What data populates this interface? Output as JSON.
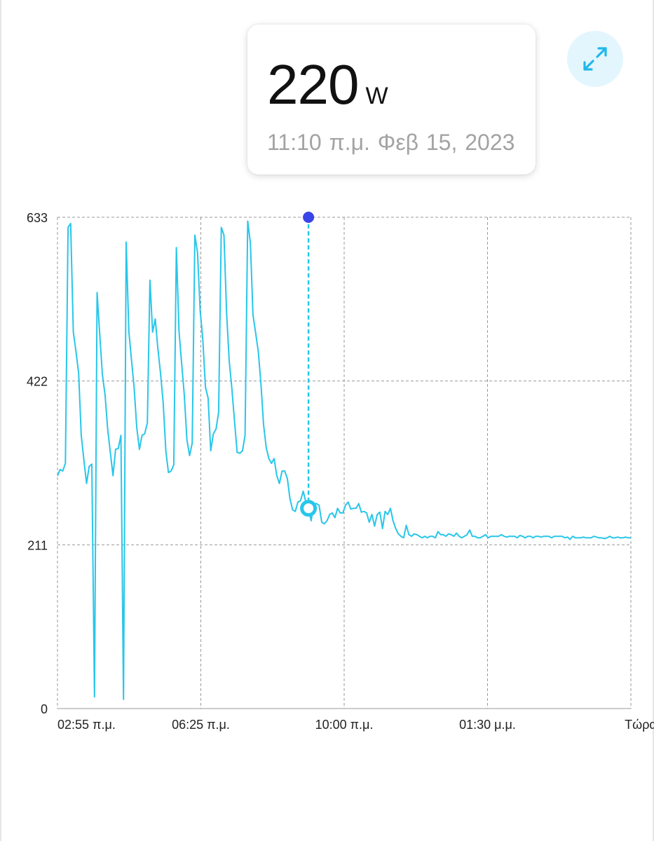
{
  "reading": {
    "value": "220",
    "unit": "W",
    "time": "11:10 π.μ.",
    "date": "Φεβ 15, 2023"
  },
  "expand_button": {
    "icon": "expand-icon"
  },
  "colors": {
    "line": "#28c6ea",
    "marker_top": "#3a44e8",
    "grid": "#9a9a9a"
  },
  "chart_data": {
    "type": "line",
    "title": "",
    "xlabel": "",
    "ylabel": "",
    "y_ticks": [
      "633",
      "422",
      "211",
      "0"
    ],
    "y_tick_values": [
      633,
      422,
      211,
      0
    ],
    "x_ticks": [
      "02:55 π.μ.",
      "06:25 π.μ.",
      "10:00 π.μ.",
      "01:30 μ.μ.",
      "Τώρα"
    ],
    "ylim": [
      0,
      633
    ],
    "grid": true,
    "selected_index": 95,
    "series": [
      {
        "values": [
          300,
          308,
          306,
          316,
          620,
          625,
          485,
          460,
          432,
          352,
          320,
          290,
          312,
          315,
          15,
          536,
          482,
          430,
          404,
          360,
          330,
          300,
          334,
          335,
          352,
          12,
          601,
          486,
          450,
          414,
          362,
          334,
          352,
          354,
          368,
          552,
          485,
          502,
          464,
          432,
          394,
          332,
          304,
          306,
          314,
          594,
          486,
          444,
          404,
          346,
          326,
          342,
          610,
          587,
          512,
          476,
          414,
          400,
          332,
          354,
          360,
          382,
          620,
          610,
          509,
          448,
          412,
          370,
          330,
          329,
          332,
          352,
          628,
          600,
          507,
          484,
          460,
          418,
          366,
          336,
          322,
          316,
          322,
          300,
          290,
          306,
          306,
          296,
          270,
          256,
          254,
          266,
          268,
          280,
          266,
          258,
          242,
          264,
          264,
          262,
          240,
          238,
          242,
          250,
          252,
          246,
          258,
          252,
          252,
          262,
          266,
          257,
          258,
          258,
          264,
          253,
          254,
          252,
          240,
          250,
          235,
          250,
          253,
          232,
          254,
          250,
          258,
          242,
          232,
          225,
          222,
          220,
          236,
          224,
          222,
          225,
          224,
          222,
          220,
          222,
          220,
          222,
          222,
          220,
          228,
          224,
          224,
          222,
          225,
          224,
          222,
          226,
          222,
          220,
          222,
          224,
          230,
          222,
          222,
          220,
          220,
          222,
          224,
          220,
          222,
          222,
          222,
          222,
          224,
          222,
          221,
          222,
          222,
          222,
          220,
          223,
          222,
          220,
          222,
          222,
          220,
          222,
          222,
          221,
          222,
          222,
          222,
          220,
          222,
          222,
          222,
          222,
          220,
          221,
          218,
          222,
          220,
          220,
          220,
          221,
          220,
          220,
          220,
          222,
          221,
          220,
          220,
          219,
          220,
          222,
          220,
          220,
          221,
          220,
          220,
          221,
          220,
          220
        ]
      }
    ]
  }
}
